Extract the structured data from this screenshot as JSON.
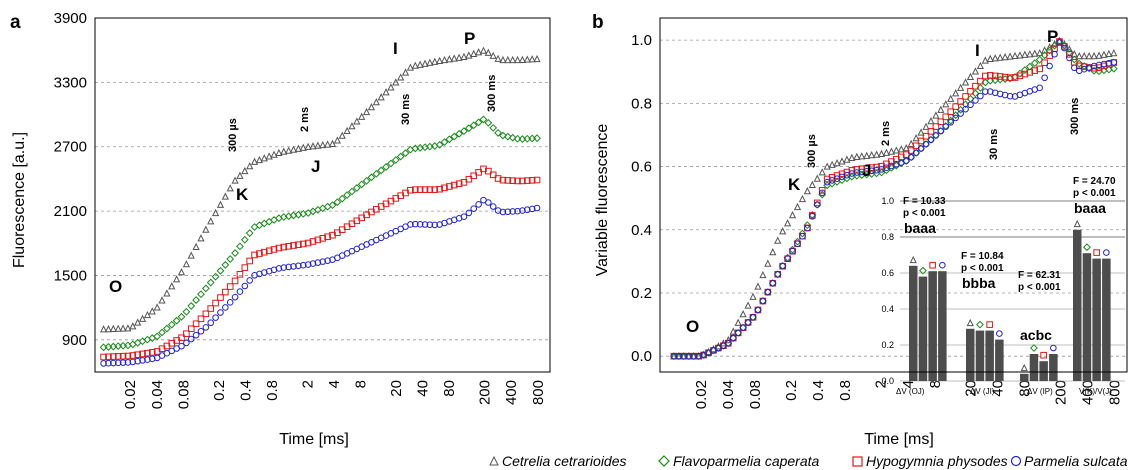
{
  "panel_a": {
    "letter": "a",
    "ylabel": "Fluorescence [a.u.]",
    "xlabel": "Time [ms]",
    "yticks": [
      "900",
      "1500",
      "2100",
      "2700",
      "3300",
      "3900"
    ],
    "xticks": [
      "0.02",
      "0.04",
      "0.08",
      "0.2",
      "0.4",
      "0.8",
      "2",
      "4",
      "8",
      "20",
      "40",
      "80",
      "200",
      "400",
      "800"
    ],
    "phases": {
      "O": "O",
      "K": "K",
      "J": "J",
      "I": "I",
      "P": "P"
    },
    "time_marks": {
      "t300us": "300 µs",
      "t2ms": "2 ms",
      "t30ms": "30 ms",
      "t300ms": "300 ms"
    }
  },
  "panel_b": {
    "letter": "b",
    "ylabel": "Variable fluorescence",
    "xlabel": "Time [ms]",
    "yticks": [
      "0.0",
      "0.2",
      "0.4",
      "0.6",
      "0.8",
      "1.0"
    ],
    "xticks": [
      "0.02",
      "0.04",
      "0.08",
      "0.2",
      "0.4",
      "0.8",
      "2",
      "4",
      "8",
      "20",
      "40",
      "80",
      "200",
      "400",
      "800"
    ],
    "phases": {
      "O": "O",
      "K": "K",
      "J": "J",
      "I": "I",
      "P": "P"
    },
    "time_marks": {
      "t300us": "300 µs",
      "t2ms": "2 ms",
      "t30ms": "30 ms",
      "t300ms": "300 ms"
    }
  },
  "inset": {
    "yticks": [
      "0.0",
      "0.2",
      "0.4",
      "0.6",
      "0.8",
      "1.0"
    ],
    "groups": [
      {
        "category": "ΔV (OJ)",
        "stat_f": "F = 10.33",
        "stat_p": "p < 0.001",
        "letters": "baaa"
      },
      {
        "category": "ΔV (JI)",
        "stat_f": "F = 10.84",
        "stat_p": "p < 0.001",
        "letters": "bbba"
      },
      {
        "category": "ΔV (IP)",
        "stat_f": "F = 62.31",
        "stat_p": "p < 0.001",
        "letters": "acbc"
      },
      {
        "category": "V(K)/V(J)",
        "stat_f": "F = 24.70",
        "stat_p": "p < 0.001",
        "letters": "baaa"
      }
    ]
  },
  "legend": {
    "items": [
      {
        "name": "Cetrelia cetrarioides",
        "marker": "triangle",
        "color": "#555555"
      },
      {
        "name": "Flavoparmelia caperata",
        "marker": "diamond",
        "color": "#1a8a1a"
      },
      {
        "name": "Hypogymnia physodes",
        "marker": "square",
        "color": "#e01818"
      },
      {
        "name": "Parmelia sulcata",
        "marker": "circle",
        "color": "#2424c8"
      }
    ]
  },
  "chart_data": [
    {
      "type": "scatter",
      "title": "",
      "xlabel": "Time [ms]",
      "ylabel": "Fluorescence [a.u.]",
      "xscale": "log",
      "xlim": [
        0.01,
        1000
      ],
      "ylim": [
        600,
        3900
      ],
      "grid": "horizontal dashed",
      "series": [
        {
          "name": "Cetrelia cetrarioides",
          "marker": "triangle",
          "color": "#555555",
          "points": [
            [
              0.01,
              1000
            ],
            [
              0.02,
              1010
            ],
            [
              0.04,
              1200
            ],
            [
              0.08,
              1560
            ],
            [
              0.15,
              1960
            ],
            [
              0.3,
              2380
            ],
            [
              0.5,
              2560
            ],
            [
              1,
              2650
            ],
            [
              2,
              2700
            ],
            [
              4,
              2730
            ],
            [
              10,
              3050
            ],
            [
              30,
              3450
            ],
            [
              60,
              3500
            ],
            [
              120,
              3540
            ],
            [
              200,
              3600
            ],
            [
              300,
              3510
            ],
            [
              500,
              3510
            ],
            [
              800,
              3520
            ]
          ]
        },
        {
          "name": "Flavoparmelia caperata",
          "marker": "diamond",
          "color": "#1a8a1a",
          "points": [
            [
              0.01,
              830
            ],
            [
              0.02,
              850
            ],
            [
              0.04,
              930
            ],
            [
              0.08,
              1130
            ],
            [
              0.15,
              1400
            ],
            [
              0.3,
              1700
            ],
            [
              0.5,
              1950
            ],
            [
              1,
              2040
            ],
            [
              2,
              2080
            ],
            [
              4,
              2160
            ],
            [
              10,
              2400
            ],
            [
              30,
              2680
            ],
            [
              60,
              2710
            ],
            [
              120,
              2850
            ],
            [
              200,
              2960
            ],
            [
              300,
              2810
            ],
            [
              500,
              2770
            ],
            [
              800,
              2780
            ]
          ]
        },
        {
          "name": "Hypogymnia physodes",
          "marker": "square",
          "color": "#e01818",
          "points": [
            [
              0.01,
              740
            ],
            [
              0.02,
              750
            ],
            [
              0.04,
              790
            ],
            [
              0.08,
              930
            ],
            [
              0.15,
              1160
            ],
            [
              0.3,
              1440
            ],
            [
              0.5,
              1690
            ],
            [
              1,
              1760
            ],
            [
              2,
              1800
            ],
            [
              4,
              1880
            ],
            [
              10,
              2080
            ],
            [
              30,
              2300
            ],
            [
              60,
              2300
            ],
            [
              120,
              2370
            ],
            [
              200,
              2500
            ],
            [
              300,
              2390
            ],
            [
              500,
              2380
            ],
            [
              800,
              2390
            ]
          ]
        },
        {
          "name": "Parmelia sulcata",
          "marker": "circle",
          "color": "#2424c8",
          "points": [
            [
              0.01,
              680
            ],
            [
              0.02,
              690
            ],
            [
              0.04,
              730
            ],
            [
              0.08,
              850
            ],
            [
              0.15,
              1030
            ],
            [
              0.3,
              1290
            ],
            [
              0.5,
              1500
            ],
            [
              1,
              1570
            ],
            [
              2,
              1600
            ],
            [
              4,
              1650
            ],
            [
              10,
              1800
            ],
            [
              30,
              1980
            ],
            [
              60,
              1970
            ],
            [
              120,
              2050
            ],
            [
              200,
              2210
            ],
            [
              300,
              2090
            ],
            [
              500,
              2100
            ],
            [
              800,
              2130
            ]
          ]
        }
      ]
    },
    {
      "type": "scatter",
      "title": "",
      "xlabel": "Time [ms]",
      "ylabel": "Variable fluorescence",
      "xscale": "log",
      "xlim": [
        0.01,
        1000
      ],
      "ylim": [
        -0.05,
        1.07
      ],
      "grid": "horizontal dashed",
      "series": [
        {
          "name": "Cetrelia cetrarioides",
          "marker": "triangle",
          "color": "#555555",
          "points": [
            [
              0.01,
              0.0
            ],
            [
              0.02,
              0.0
            ],
            [
              0.04,
              0.05
            ],
            [
              0.08,
              0.2
            ],
            [
              0.15,
              0.38
            ],
            [
              0.3,
              0.52
            ],
            [
              0.5,
              0.6
            ],
            [
              1,
              0.63
            ],
            [
              2,
              0.64
            ],
            [
              4,
              0.66
            ],
            [
              10,
              0.79
            ],
            [
              30,
              0.94
            ],
            [
              60,
              0.95
            ],
            [
              120,
              0.96
            ],
            [
              200,
              1.0
            ],
            [
              300,
              0.95
            ],
            [
              500,
              0.95
            ],
            [
              800,
              0.96
            ]
          ]
        },
        {
          "name": "Flavoparmelia caperata",
          "marker": "diamond",
          "color": "#1a8a1a",
          "points": [
            [
              0.01,
              0.0
            ],
            [
              0.02,
              0.0
            ],
            [
              0.04,
              0.04
            ],
            [
              0.08,
              0.13
            ],
            [
              0.15,
              0.27
            ],
            [
              0.3,
              0.41
            ],
            [
              0.5,
              0.54
            ],
            [
              1,
              0.57
            ],
            [
              2,
              0.58
            ],
            [
              4,
              0.62
            ],
            [
              10,
              0.72
            ],
            [
              30,
              0.87
            ],
            [
              60,
              0.88
            ],
            [
              120,
              0.94
            ],
            [
              200,
              1.0
            ],
            [
              300,
              0.93
            ],
            [
              500,
              0.9
            ],
            [
              800,
              0.91
            ]
          ]
        },
        {
          "name": "Hypogymnia physodes",
          "marker": "square",
          "color": "#e01818",
          "points": [
            [
              0.01,
              0.0
            ],
            [
              0.02,
              0.0
            ],
            [
              0.04,
              0.04
            ],
            [
              0.08,
              0.13
            ],
            [
              0.15,
              0.27
            ],
            [
              0.3,
              0.4
            ],
            [
              0.5,
              0.56
            ],
            [
              1,
              0.59
            ],
            [
              2,
              0.6
            ],
            [
              4,
              0.64
            ],
            [
              10,
              0.75
            ],
            [
              30,
              0.89
            ],
            [
              60,
              0.88
            ],
            [
              120,
              0.91
            ],
            [
              200,
              1.0
            ],
            [
              300,
              0.92
            ],
            [
              500,
              0.91
            ],
            [
              800,
              0.93
            ]
          ]
        },
        {
          "name": "Parmelia sulcata",
          "marker": "circle",
          "color": "#2424c8",
          "points": [
            [
              0.01,
              0.0
            ],
            [
              0.02,
              0.0
            ],
            [
              0.04,
              0.04
            ],
            [
              0.08,
              0.13
            ],
            [
              0.15,
              0.27
            ],
            [
              0.3,
              0.4
            ],
            [
              0.5,
              0.55
            ],
            [
              1,
              0.58
            ],
            [
              2,
              0.59
            ],
            [
              4,
              0.62
            ],
            [
              10,
              0.72
            ],
            [
              30,
              0.84
            ],
            [
              60,
              0.82
            ],
            [
              120,
              0.85
            ],
            [
              200,
              1.0
            ],
            [
              300,
              0.9
            ],
            [
              500,
              0.92
            ],
            [
              800,
              0.93
            ]
          ]
        }
      ]
    },
    {
      "type": "bar",
      "title": "",
      "categories": [
        "ΔV (OJ)",
        "ΔV (JI)",
        "ΔV (IP)",
        "V(K)/V(J)"
      ],
      "ylim": [
        0,
        1.0
      ],
      "grid": "horizontal",
      "series": [
        {
          "name": "Cetrelia cetrarioides",
          "values": [
            0.64,
            0.29,
            0.04,
            0.84
          ]
        },
        {
          "name": "Flavoparmelia caperata",
          "values": [
            0.58,
            0.28,
            0.15,
            0.71
          ]
        },
        {
          "name": "Hypogymnia physodes",
          "values": [
            0.61,
            0.28,
            0.11,
            0.68
          ]
        },
        {
          "name": "Parmelia sulcata",
          "values": [
            0.61,
            0.23,
            0.15,
            0.68
          ]
        }
      ]
    }
  ]
}
